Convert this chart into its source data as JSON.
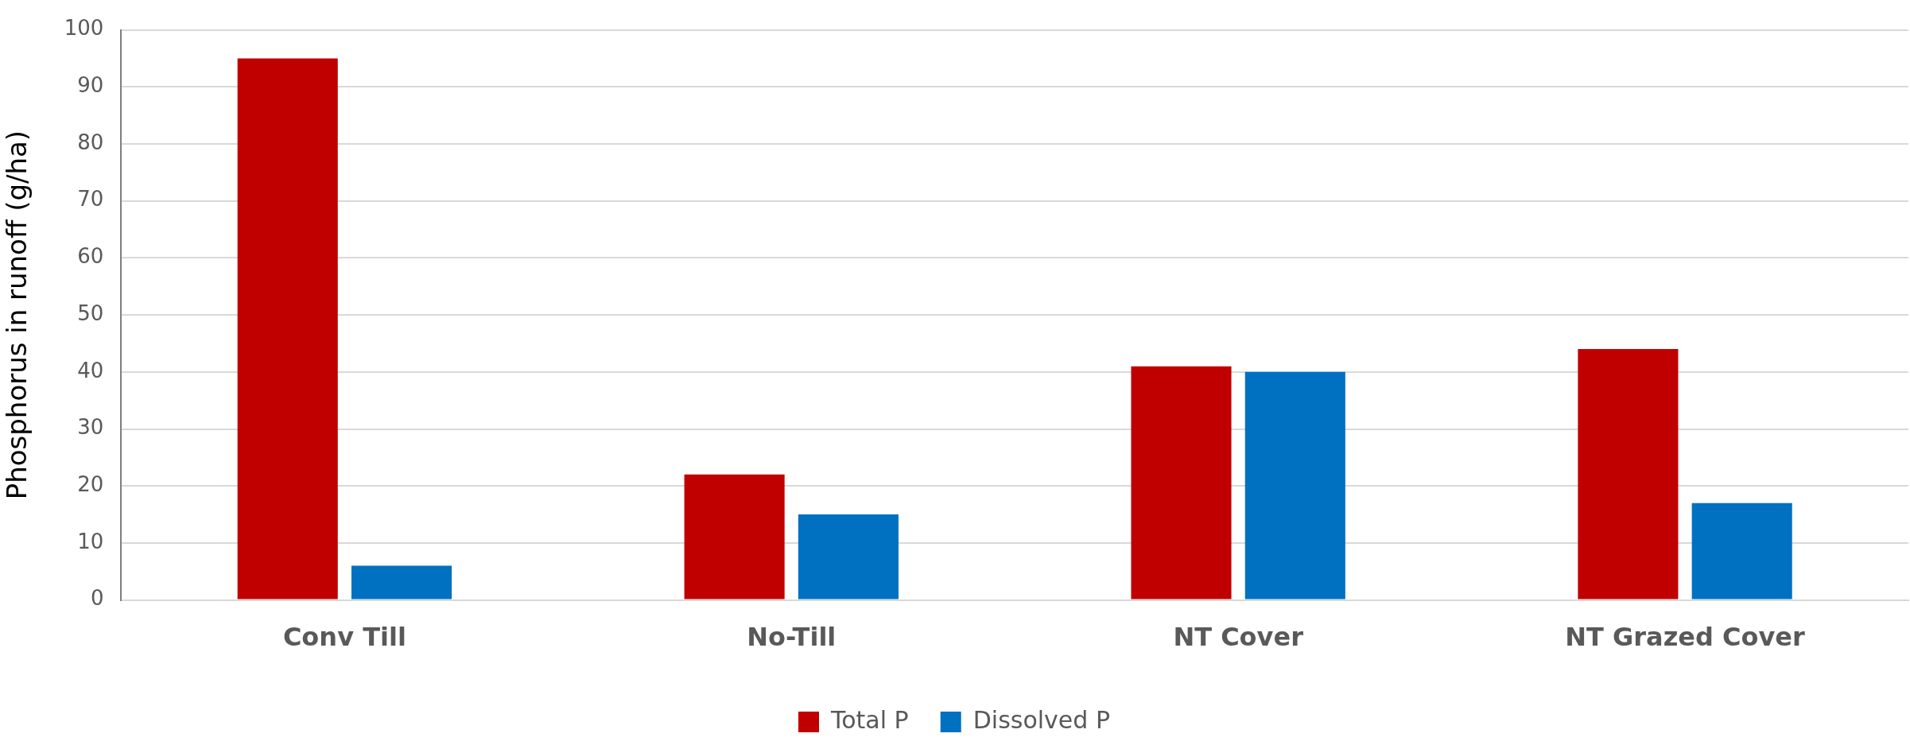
{
  "chart_data": {
    "type": "bar",
    "ylabel": "Phosphorus in runoff (g/ha)",
    "categories": [
      "Conv Till",
      "No-Till",
      "NT Cover",
      "NT Grazed Cover"
    ],
    "series": [
      {
        "name": "Total P",
        "color": "#c00000",
        "values": [
          95,
          22,
          41,
          44
        ]
      },
      {
        "name": "Dissolved P",
        "color": "#0070c0",
        "values": [
          6,
          15,
          40,
          17
        ]
      }
    ],
    "ylim": [
      0,
      100
    ],
    "yticks": [
      0,
      10,
      20,
      30,
      40,
      50,
      60,
      70,
      80,
      90,
      100
    ],
    "grid": "y",
    "legend": "bottom"
  }
}
